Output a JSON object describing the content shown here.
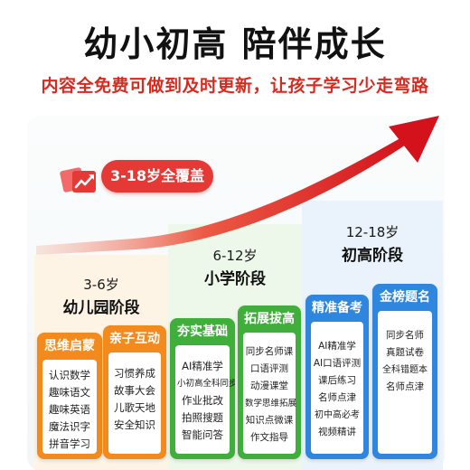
{
  "header": {
    "title": "幼小初高 陪伴成长",
    "subtitle": "内容全免费可做到及时更新，让孩子学习少走弯路"
  },
  "badge": {
    "label": "3-18岁全覆盖",
    "icon": "app-icon"
  },
  "colors": {
    "accent_red": "#e53935",
    "orange": "#f28a1e",
    "green": "#3fae3a",
    "blue": "#2f86de"
  },
  "stages": {
    "kindergarten": {
      "age": "3-6岁",
      "name": "幼儿园阶段",
      "cards": [
        {
          "title": "思维启蒙",
          "items": [
            "认识数学",
            "趣味语文",
            "趣味英语",
            "魔法识字",
            "拼音学习"
          ]
        },
        {
          "title": "亲子互动",
          "items": [
            "习惯养成",
            "故事大会",
            "儿歌天地",
            "安全知识"
          ]
        }
      ]
    },
    "primary": {
      "age": "6-12岁",
      "name": "小学阶段",
      "cards": [
        {
          "title": "夯实基础",
          "items": [
            "AI精准学",
            "小初高全科同步",
            "作业批改",
            "拍照搜题",
            "智能问答"
          ]
        },
        {
          "title": "拓展拔高",
          "items": [
            "同步名师课",
            "口语评测",
            "动漫课堂",
            "数学思维拓展",
            "知识点微课",
            "作文指导"
          ]
        }
      ]
    },
    "secondary": {
      "age": "12-18岁",
      "name": "初高阶段",
      "cards": [
        {
          "title": "精准备考",
          "items": [
            "AI精准学",
            "AI口语评测",
            "课后练习",
            "名师点津",
            "初中高必考",
            "视频精讲"
          ]
        },
        {
          "title": "金榜题名",
          "items": [
            "同步名师",
            "真题试卷",
            "全科错题本",
            "名师点津"
          ]
        }
      ]
    }
  }
}
